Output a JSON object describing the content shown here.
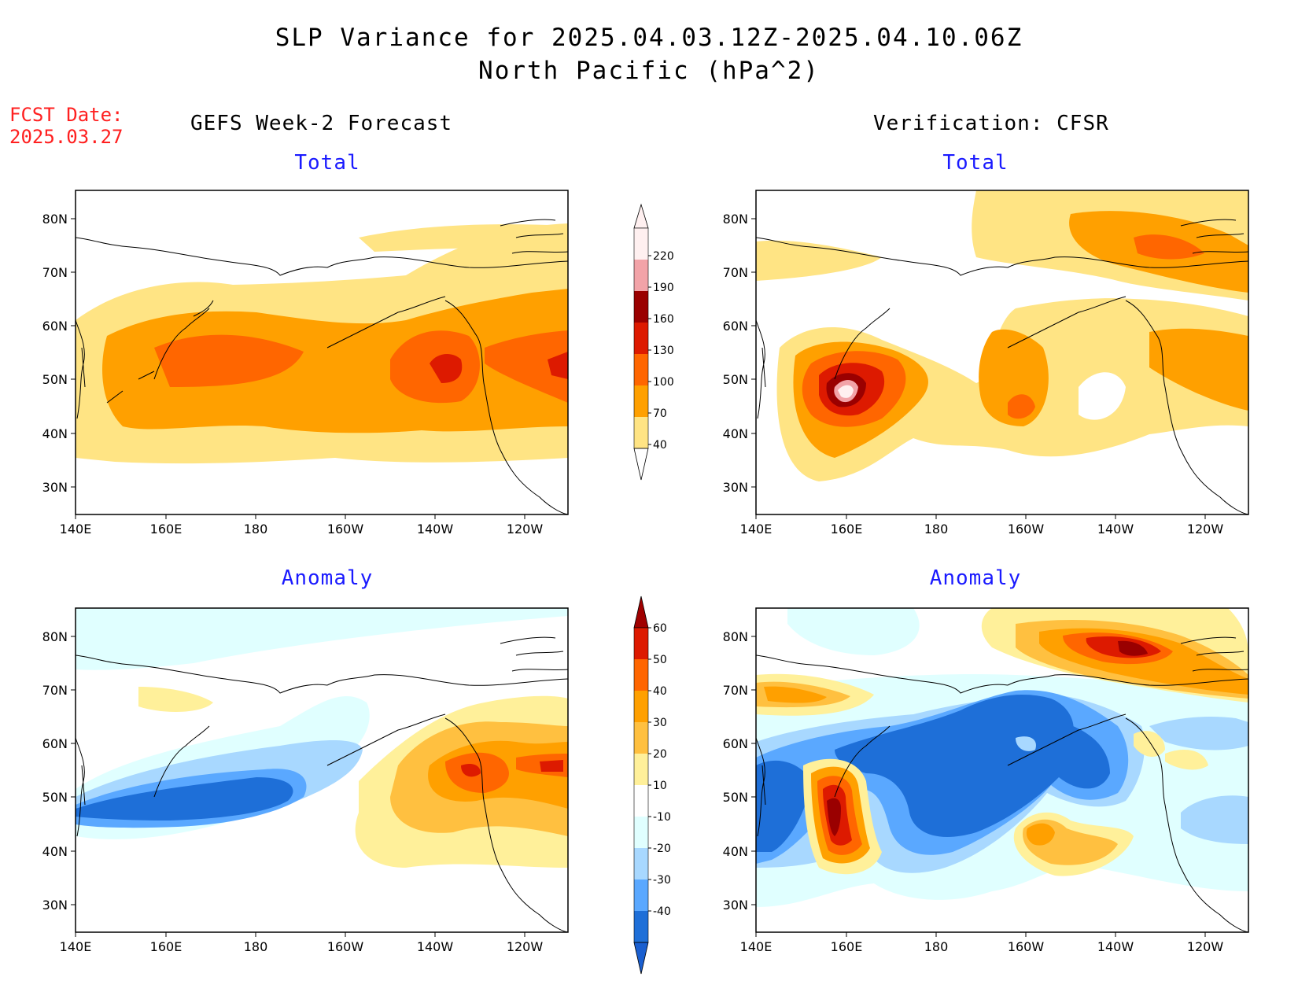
{
  "header": {
    "title_line1": "SLP Variance for 2025.04.03.12Z-2025.04.10.06Z",
    "title_line2": "North Pacific (hPa^2)",
    "fcst_label": "FCST Date:",
    "fcst_date": "2025.03.27"
  },
  "columns": {
    "left_title": "GEFS Week-2 Forecast",
    "right_title": "Verification: CFSR"
  },
  "panels": {
    "total_label": "Total",
    "anomaly_label": "Anomaly"
  },
  "axes": {
    "lon_ticks": [
      "140E",
      "160E",
      "180",
      "160W",
      "140W",
      "120W"
    ],
    "lat_ticks": [
      "80N",
      "70N",
      "60N",
      "50N",
      "40N",
      "30N"
    ]
  },
  "legend_total": {
    "levels": [
      "220",
      "190",
      "160",
      "130",
      "100",
      "70",
      "40"
    ],
    "colors": [
      "#fff0f0",
      "#f2a3a8",
      "#9a0000",
      "#dd1a00",
      "#ff6600",
      "#ffa000",
      "#ffe484"
    ]
  },
  "legend_anomaly": {
    "levels": [
      "60",
      "50",
      "40",
      "30",
      "20",
      "10",
      "-10",
      "-20",
      "-30",
      "-40"
    ],
    "colors_positive": [
      "#a00000",
      "#dd1a00",
      "#ff6600",
      "#ffa000",
      "#ffc040",
      "#fff09a"
    ],
    "colors_negative": [
      "#e0ffff",
      "#a8d8ff",
      "#5aa8ff",
      "#1e6fd8"
    ]
  }
}
